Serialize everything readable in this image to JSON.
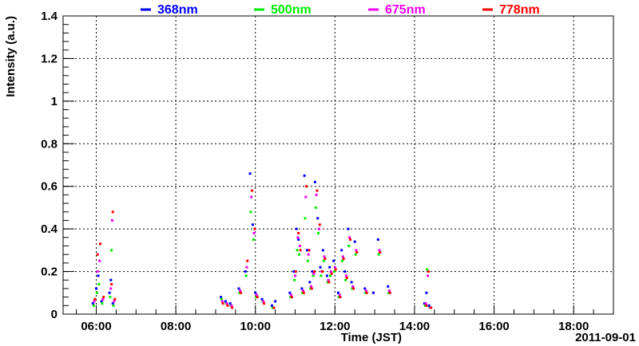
{
  "chart_data": {
    "type": "scatter",
    "title": "",
    "xlabel": "Time (JST)",
    "ylabel": "Intensity (a.u.)",
    "date_label": "2011-09-01",
    "ylim": [
      0,
      1.4
    ],
    "xlim": [
      "05:10",
      "19:00"
    ],
    "grid": true,
    "legend_position": "top",
    "x_ticks": [
      "06:00",
      "08:00",
      "10:00",
      "12:00",
      "14:00",
      "16:00",
      "18:00"
    ],
    "y_ticks": [
      "0",
      "0.2",
      "0.4",
      "0.6",
      "0.8",
      "1",
      "1.2",
      "1.4"
    ],
    "series": [
      {
        "name": "368nm",
        "color": "#0000ff",
        "x": [
          "05:55",
          "06:00",
          "06:03",
          "06:08",
          "06:20",
          "06:22",
          "06:25",
          "09:08",
          "09:15",
          "09:22",
          "09:35",
          "09:45",
          "09:52",
          "09:56",
          "10:00",
          "10:10",
          "10:25",
          "10:30",
          "10:52",
          "10:58",
          "11:02",
          "11:05",
          "11:10",
          "11:14",
          "11:18",
          "11:22",
          "11:26",
          "11:30",
          "11:34",
          "11:38",
          "11:42",
          "11:48",
          "11:52",
          "11:58",
          "12:05",
          "12:10",
          "12:15",
          "12:20",
          "12:25",
          "12:30",
          "12:45",
          "12:58",
          "13:05",
          "13:20",
          "14:15",
          "14:18",
          "14:22"
        ],
        "y": [
          0.05,
          0.12,
          0.18,
          0.06,
          0.1,
          0.16,
          0.05,
          0.08,
          0.06,
          0.05,
          0.12,
          0.2,
          0.66,
          0.42,
          0.1,
          0.07,
          0.04,
          0.06,
          0.1,
          0.2,
          0.4,
          0.35,
          0.12,
          0.65,
          0.3,
          0.15,
          0.2,
          0.62,
          0.45,
          0.22,
          0.3,
          0.18,
          0.22,
          0.25,
          0.1,
          0.3,
          0.2,
          0.4,
          0.15,
          0.34,
          0.12,
          0.1,
          0.35,
          0.13,
          0.05,
          0.1,
          0.04
        ]
      },
      {
        "name": "500nm",
        "color": "#00ee00",
        "x": [
          "05:56",
          "06:01",
          "06:04",
          "06:09",
          "06:21",
          "06:23",
          "06:26",
          "09:09",
          "09:16",
          "09:23",
          "09:36",
          "09:46",
          "09:53",
          "09:57",
          "10:01",
          "10:11",
          "10:26",
          "10:53",
          "10:59",
          "11:03",
          "11:06",
          "11:11",
          "11:15",
          "11:19",
          "11:23",
          "11:27",
          "11:31",
          "11:35",
          "11:39",
          "11:43",
          "11:49",
          "11:53",
          "11:59",
          "12:06",
          "12:11",
          "12:16",
          "12:21",
          "12:26",
          "12:31",
          "12:46",
          "13:06",
          "13:21",
          "14:16",
          "14:19",
          "14:23"
        ],
        "y": [
          0.04,
          0.1,
          0.14,
          0.05,
          0.08,
          0.3,
          0.04,
          0.07,
          0.05,
          0.04,
          0.1,
          0.18,
          0.48,
          0.35,
          0.08,
          0.06,
          0.03,
          0.08,
          0.16,
          0.3,
          0.28,
          0.1,
          0.45,
          0.25,
          0.12,
          0.18,
          0.5,
          0.38,
          0.18,
          0.25,
          0.15,
          0.18,
          0.2,
          0.08,
          0.25,
          0.16,
          0.32,
          0.12,
          0.28,
          0.1,
          0.28,
          0.1,
          0.04,
          0.21,
          0.03
        ]
      },
      {
        "name": "675nm",
        "color": "#ee00ee",
        "x": [
          "05:57",
          "06:02",
          "06:05",
          "06:10",
          "06:22",
          "06:24",
          "06:27",
          "09:10",
          "09:17",
          "09:24",
          "09:37",
          "09:47",
          "09:54",
          "09:58",
          "10:02",
          "10:12",
          "10:54",
          "11:00",
          "11:04",
          "11:07",
          "11:12",
          "11:16",
          "11:20",
          "11:24",
          "11:28",
          "11:32",
          "11:36",
          "11:40",
          "11:44",
          "11:50",
          "11:54",
          "12:00",
          "12:07",
          "12:12",
          "12:17",
          "12:22",
          "12:27",
          "12:32",
          "12:47",
          "13:07",
          "13:22",
          "14:17",
          "14:20",
          "14:24"
        ],
        "y": [
          0.06,
          0.2,
          0.25,
          0.07,
          0.12,
          0.44,
          0.06,
          0.06,
          0.05,
          0.04,
          0.11,
          0.22,
          0.55,
          0.38,
          0.09,
          0.06,
          0.09,
          0.18,
          0.36,
          0.32,
          0.11,
          0.55,
          0.28,
          0.13,
          0.19,
          0.56,
          0.4,
          0.2,
          0.27,
          0.16,
          0.2,
          0.22,
          0.09,
          0.27,
          0.18,
          0.36,
          0.13,
          0.3,
          0.11,
          0.3,
          0.11,
          0.05,
          0.18,
          0.03
        ]
      },
      {
        "name": "778nm",
        "color": "#ff0000",
        "x": [
          "05:58",
          "06:02",
          "06:06",
          "06:11",
          "06:23",
          "06:25",
          "06:28",
          "09:11",
          "09:18",
          "09:25",
          "09:38",
          "09:48",
          "09:55",
          "09:59",
          "10:03",
          "10:13",
          "10:28",
          "10:55",
          "11:01",
          "11:05",
          "11:08",
          "11:13",
          "11:17",
          "11:21",
          "11:25",
          "11:29",
          "11:33",
          "11:37",
          "11:41",
          "11:45",
          "11:51",
          "11:55",
          "12:01",
          "12:08",
          "12:13",
          "12:18",
          "12:23",
          "12:28",
          "12:33",
          "12:48",
          "13:08",
          "13:23",
          "14:18",
          "14:21",
          "14:25"
        ],
        "y": [
          0.07,
          0.28,
          0.33,
          0.08,
          0.14,
          0.48,
          0.07,
          0.05,
          0.04,
          0.03,
          0.1,
          0.25,
          0.58,
          0.4,
          0.08,
          0.05,
          0.03,
          0.08,
          0.2,
          0.38,
          0.3,
          0.1,
          0.6,
          0.3,
          0.12,
          0.2,
          0.58,
          0.42,
          0.2,
          0.26,
          0.15,
          0.19,
          0.21,
          0.08,
          0.26,
          0.17,
          0.35,
          0.12,
          0.29,
          0.1,
          0.29,
          0.1,
          0.04,
          0.2,
          0.03
        ]
      }
    ]
  }
}
